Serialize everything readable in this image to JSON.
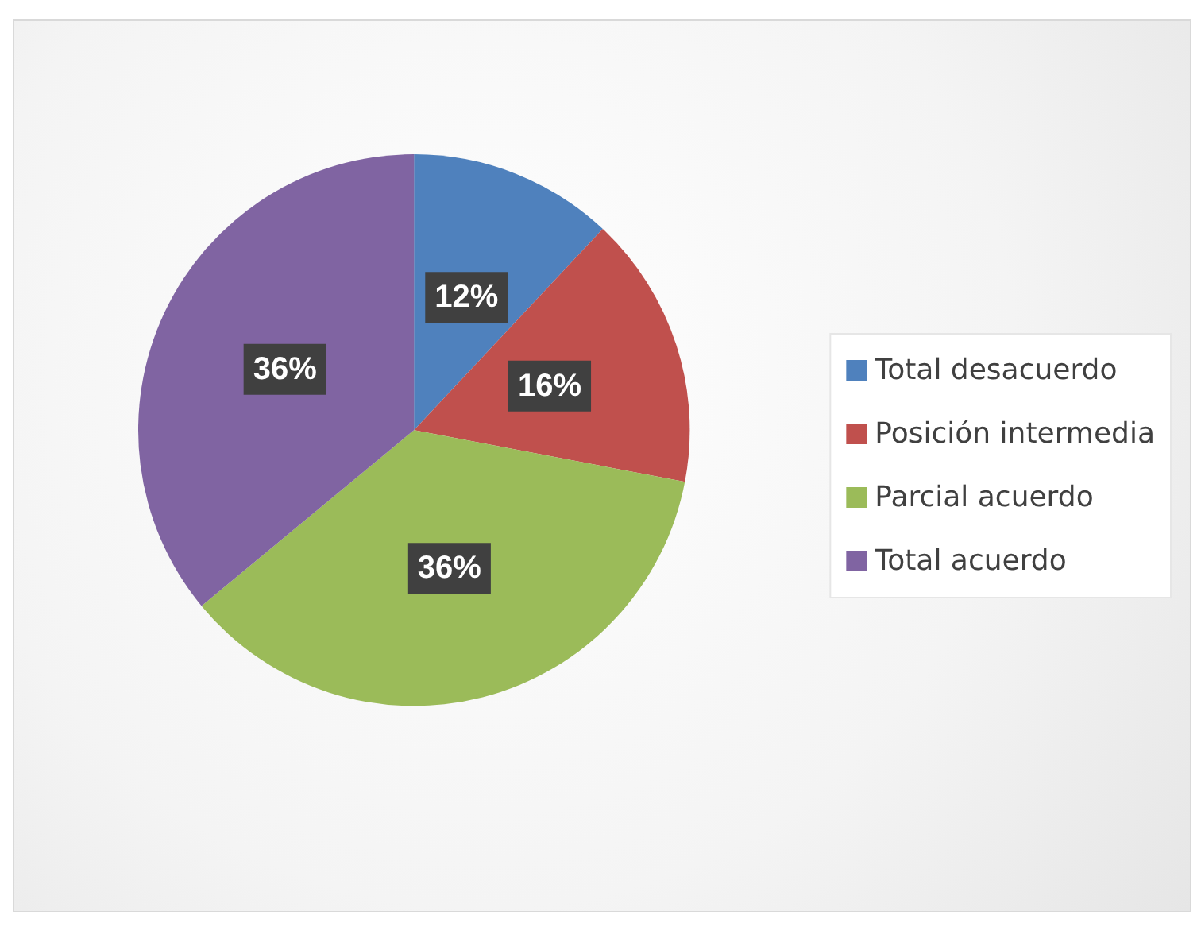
{
  "chart_data": {
    "type": "pie",
    "categories": [
      "Total desacuerdo",
      "Posición intermedia",
      "Parcial acuerdo",
      "Total acuerdo"
    ],
    "values": [
      12,
      16,
      36,
      36
    ],
    "value_labels": [
      "12%",
      "16%",
      "36%",
      "36%"
    ],
    "colors": [
      "#4f81bd",
      "#c0504d",
      "#9bbb59",
      "#8064a2"
    ],
    "legend": "right"
  }
}
